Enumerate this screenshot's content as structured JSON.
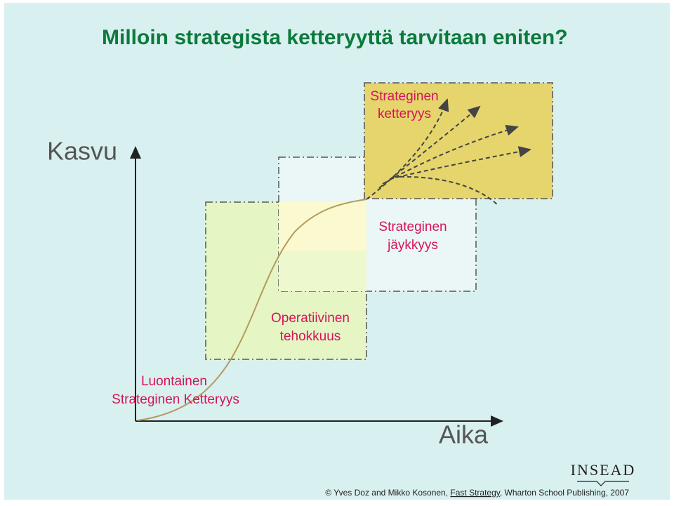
{
  "title": "Milloin strategista ketteryyttä tarvitaan eniten?",
  "axes": {
    "y_label": "Kasvu",
    "x_label": "Aika"
  },
  "regions": [
    {
      "label_lines": [
        "Strateginen",
        "ketteryys"
      ]
    },
    {
      "label_lines": [
        "Strateginen",
        "jäykkyys"
      ]
    },
    {
      "label_lines": [
        "Operatiivinen",
        "tehokkuus"
      ]
    },
    {
      "label_lines": [
        "Luontainen",
        "Strateginen Ketteryys"
      ]
    }
  ],
  "logo": "INSEAD",
  "footer": {
    "prefix": "© Yves Doz and Mikko Kosonen, ",
    "book": "Fast Strategy",
    "suffix": ", Wharton School Publishing, 2007"
  }
}
